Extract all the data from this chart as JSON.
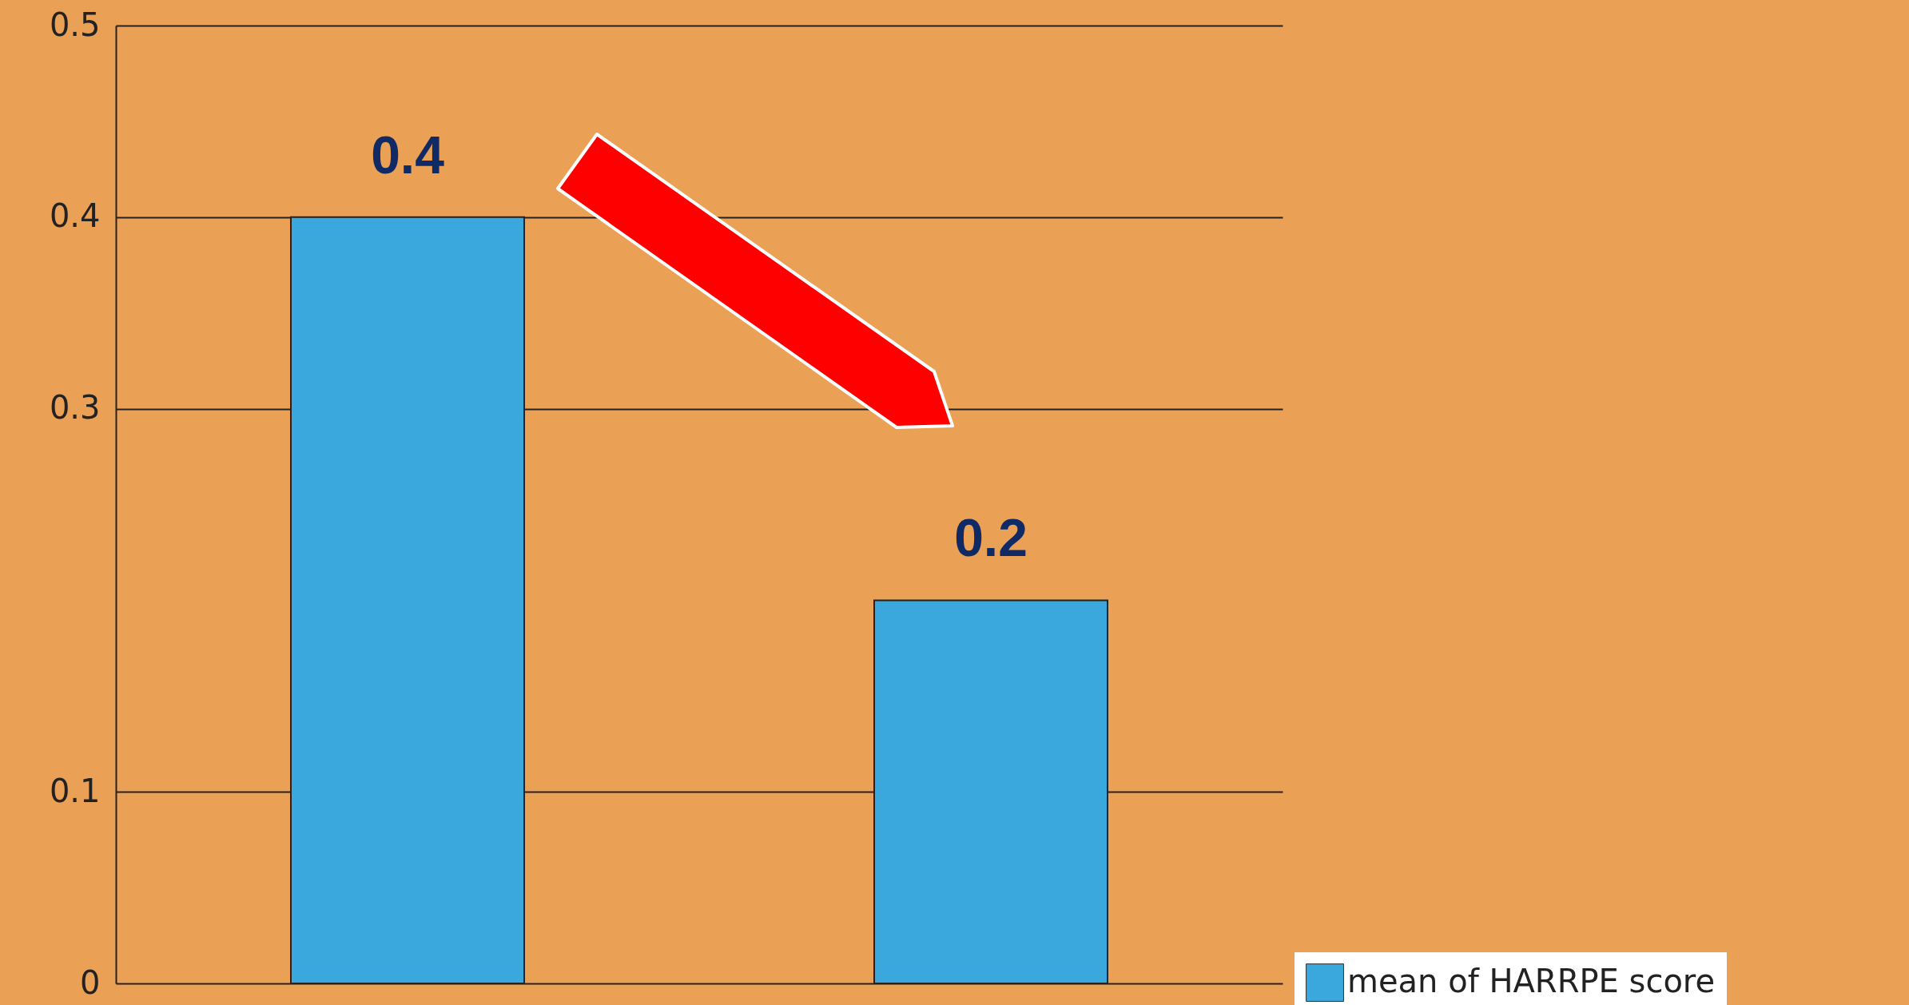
{
  "chart_data": {
    "type": "bar",
    "categories": [
      null,
      null
    ],
    "series": [
      {
        "name": "mean of HARRPE score",
        "color": "#3aa8dc",
        "values": [
          0.4,
          0.2
        ]
      }
    ],
    "ylim": [
      0,
      0.5
    ],
    "yticks": [
      0,
      0.1,
      0.3,
      0.4,
      0.5
    ],
    "grid": "y",
    "legend": "bottom right",
    "data_labels": true
  }
}
